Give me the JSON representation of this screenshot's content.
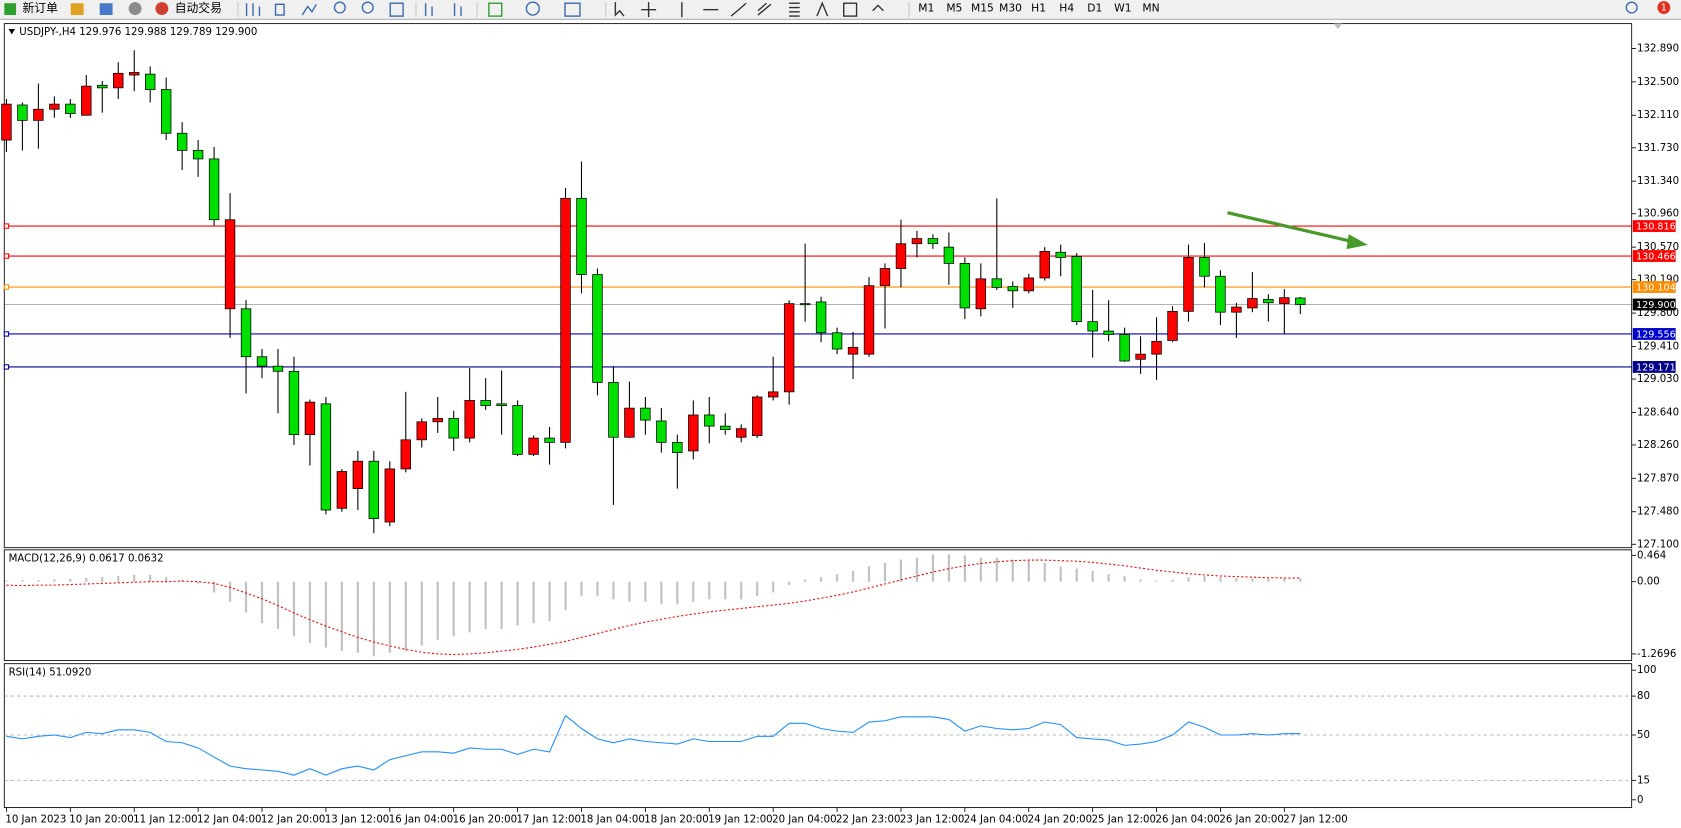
{
  "toolbar": {
    "new_order": "新订单",
    "auto_trading": "自动交易",
    "timeframes": [
      "M1",
      "M5",
      "M15",
      "M30",
      "H1",
      "H4",
      "D1",
      "W1",
      "MN"
    ],
    "badge": "1"
  },
  "chart_data": [
    {
      "type": "candlestick",
      "title": "USDJPY-,H4  129.976 129.988 129.789 129.900",
      "categories": [
        "10 Jan 2023",
        null,
        null,
        null,
        "10 Jan 20:00",
        null,
        null,
        null,
        "11 Jan 12:00",
        null,
        null,
        null,
        "12 Jan 04:00",
        null,
        null,
        null,
        "12 Jan 20:00",
        null,
        null,
        null,
        "13 Jan 12:00",
        null,
        null,
        null,
        "16 Jan 04:00",
        null,
        null,
        null,
        "16 Jan 20:00",
        null,
        null,
        null,
        "17 Jan 12:00",
        null,
        null,
        null,
        "18 Jan 04:00",
        null,
        null,
        null,
        "18 Jan 20:00",
        null,
        null,
        null,
        "19 Jan 12:00",
        null,
        null,
        null,
        "20 Jan 04:00",
        null,
        null,
        null,
        "22 Jan 23:00",
        null,
        null,
        null,
        "23 Jan 12:00",
        null,
        null,
        null,
        "24 Jan 04:00",
        null,
        null,
        null,
        "24 Jan 20:00",
        null,
        null,
        null,
        "25 Jan 12:00",
        null,
        null,
        null,
        "26 Jan 04:00",
        null,
        null,
        null,
        "26 Jan 20:00",
        null,
        null,
        null,
        "27 Jan 12:00",
        null
      ],
      "open": [
        131.82,
        132.23,
        132.05,
        132.18,
        132.24,
        132.11,
        132.46,
        132.43,
        132.58,
        132.59,
        132.41,
        131.9,
        131.7,
        131.6,
        129.85,
        129.85,
        129.29,
        129.18,
        129.12,
        128.38,
        128.74,
        127.52,
        127.75,
        128.07,
        127.36,
        127.98,
        128.32,
        128.53,
        128.57,
        128.34,
        128.78,
        128.74,
        128.72,
        128.15,
        128.34,
        128.29,
        131.14,
        130.25,
        128.99,
        128.35,
        128.69,
        128.54,
        128.29,
        128.19,
        128.61,
        128.48,
        128.35,
        128.37,
        128.82,
        128.88,
        129.91,
        129.93,
        129.57,
        129.32,
        129.32,
        130.12,
        130.32,
        130.61,
        130.67,
        130.57,
        130.38,
        129.85,
        130.2,
        130.11,
        130.06,
        130.21,
        130.51,
        130.46,
        129.7,
        129.59,
        129.55,
        129.26,
        129.32,
        129.48,
        129.82,
        130.45,
        130.23,
        129.81,
        129.86,
        129.96,
        129.91,
        129.976
      ],
      "high": [
        132.3,
        132.26,
        132.48,
        132.33,
        132.3,
        132.58,
        132.51,
        132.73,
        132.87,
        132.68,
        132.55,
        132.03,
        131.82,
        131.74,
        131.2,
        129.95,
        129.38,
        129.38,
        129.29,
        128.79,
        128.82,
        127.98,
        128.19,
        128.19,
        128.07,
        128.88,
        128.57,
        128.82,
        128.66,
        129.16,
        129.04,
        129.13,
        128.78,
        128.37,
        128.47,
        131.26,
        131.57,
        130.32,
        129.18,
        129.0,
        128.82,
        128.69,
        128.38,
        128.78,
        128.82,
        128.63,
        128.5,
        128.84,
        129.29,
        129.95,
        130.61,
        129.99,
        129.63,
        129.58,
        130.22,
        130.38,
        130.89,
        130.76,
        130.72,
        130.74,
        130.45,
        130.38,
        131.14,
        130.17,
        130.26,
        130.57,
        130.6,
        130.5,
        130.07,
        129.95,
        129.63,
        129.53,
        129.75,
        129.88,
        130.6,
        130.62,
        130.3,
        129.92,
        130.28,
        130.02,
        130.08,
        129.988
      ],
      "low": [
        131.68,
        131.7,
        131.72,
        132.08,
        132.08,
        132.11,
        132.14,
        132.3,
        132.39,
        132.26,
        131.82,
        131.47,
        131.39,
        130.82,
        129.51,
        128.86,
        129.04,
        128.63,
        128.26,
        128.02,
        127.45,
        127.48,
        127.5,
        127.23,
        127.31,
        127.94,
        128.23,
        128.4,
        128.19,
        128.29,
        128.67,
        128.38,
        128.13,
        128.13,
        128.03,
        128.22,
        130.03,
        128.84,
        127.56,
        128.34,
        128.38,
        128.17,
        127.75,
        128.09,
        128.28,
        128.38,
        128.29,
        128.34,
        128.78,
        128.73,
        129.7,
        129.46,
        129.32,
        129.03,
        129.29,
        129.62,
        130.1,
        130.45,
        130.55,
        130.13,
        129.73,
        129.76,
        130.07,
        129.86,
        130.03,
        130.18,
        130.23,
        129.66,
        129.28,
        129.47,
        129.23,
        129.09,
        129.02,
        129.46,
        129.7,
        130.1,
        129.66,
        129.51,
        129.81,
        129.7,
        129.56,
        129.789
      ],
      "close": [
        132.24,
        132.05,
        132.18,
        132.24,
        132.13,
        132.45,
        132.43,
        132.6,
        132.61,
        132.41,
        131.9,
        131.7,
        131.6,
        130.89,
        130.89,
        129.29,
        129.18,
        129.12,
        128.38,
        128.76,
        127.5,
        127.95,
        128.07,
        127.4,
        127.98,
        128.32,
        128.53,
        128.57,
        128.34,
        128.78,
        128.72,
        128.72,
        128.15,
        128.34,
        128.29,
        131.14,
        130.25,
        128.99,
        128.35,
        128.69,
        128.55,
        128.29,
        128.17,
        128.61,
        128.48,
        128.44,
        128.45,
        128.82,
        128.88,
        129.91,
        129.9,
        129.57,
        129.38,
        129.4,
        130.12,
        130.32,
        130.61,
        130.67,
        130.61,
        130.38,
        129.86,
        130.2,
        130.1,
        130.06,
        130.21,
        130.52,
        130.45,
        129.7,
        129.59,
        129.55,
        129.24,
        129.32,
        129.47,
        129.82,
        130.45,
        130.23,
        129.81,
        129.87,
        129.97,
        129.92,
        129.98,
        129.9
      ],
      "up_color": "#ff0000",
      "down_color": "#00e000",
      "ylim": [
        127.06,
        133.18
      ],
      "yticks": [
        {
          "value": 132.89,
          "label": "132.890"
        },
        {
          "value": 132.5,
          "label": "132.500"
        },
        {
          "value": 132.11,
          "label": "132.110"
        },
        {
          "value": 131.73,
          "label": "131.730"
        },
        {
          "value": 131.34,
          "label": "131.340"
        },
        {
          "value": 130.96,
          "label": "130.960"
        },
        {
          "value": 130.57,
          "label": "130.570"
        },
        {
          "value": 130.19,
          "label": "130.190"
        },
        {
          "value": 129.8,
          "label": "129.800"
        },
        {
          "value": 129.41,
          "label": "129.410"
        },
        {
          "value": 129.03,
          "label": "129.030"
        },
        {
          "value": 128.64,
          "label": "128.640"
        },
        {
          "value": 128.26,
          "label": "128.260"
        },
        {
          "value": 127.87,
          "label": "127.870"
        },
        {
          "value": 127.48,
          "label": "127.480"
        },
        {
          "value": 127.1,
          "label": "127.100"
        }
      ],
      "levels": [
        {
          "value": 130.816,
          "color": "#ff0000"
        },
        {
          "value": 130.466,
          "color": "#ff0000"
        },
        {
          "value": 130.104,
          "color": "#ff8c00"
        },
        {
          "value": 129.9,
          "label": "129.900",
          "color": "#000000"
        },
        {
          "value": 129.556,
          "color": "#0000cd"
        },
        {
          "value": 129.171,
          "color": "#00008b"
        }
      ]
    },
    {
      "type": "macd",
      "title": "MACD(12,26,9) 0.0617 0.0632",
      "histogram": [
        0.02,
        0.03,
        0.03,
        0.04,
        0.05,
        0.07,
        0.08,
        0.1,
        0.12,
        0.12,
        0.08,
        0.03,
        -0.03,
        -0.19,
        -0.35,
        -0.54,
        -0.73,
        -0.83,
        -0.96,
        -1.08,
        -1.16,
        -1.22,
        -1.25,
        -1.31,
        -1.25,
        -1.22,
        -1.12,
        -1.02,
        -0.96,
        -0.89,
        -0.83,
        -0.83,
        -0.77,
        -0.73,
        -0.69,
        -0.5,
        -0.25,
        -0.25,
        -0.31,
        -0.35,
        -0.35,
        -0.39,
        -0.39,
        -0.35,
        -0.31,
        -0.31,
        -0.31,
        -0.25,
        -0.19,
        -0.06,
        0.04,
        0.08,
        0.13,
        0.19,
        0.27,
        0.33,
        0.39,
        0.42,
        0.48,
        0.48,
        0.46,
        0.42,
        0.42,
        0.39,
        0.39,
        0.33,
        0.27,
        0.23,
        0.19,
        0.13,
        0.1,
        0.04,
        0.02,
        0.03,
        0.08,
        0.1,
        0.08,
        0.06,
        0.06,
        0.05,
        0.06,
        0.0617
      ],
      "signal": [
        -0.06,
        -0.07,
        -0.06,
        -0.06,
        -0.05,
        -0.04,
        -0.03,
        -0.02,
        -0.01,
        0.0,
        0.0,
        0.01,
        0.0,
        -0.03,
        -0.1,
        -0.2,
        -0.3,
        -0.42,
        -0.55,
        -0.67,
        -0.78,
        -0.88,
        -0.98,
        -1.06,
        -1.13,
        -1.19,
        -1.24,
        -1.27,
        -1.28,
        -1.27,
        -1.25,
        -1.22,
        -1.19,
        -1.15,
        -1.1,
        -1.05,
        -0.98,
        -0.91,
        -0.84,
        -0.77,
        -0.71,
        -0.66,
        -0.61,
        -0.57,
        -0.53,
        -0.5,
        -0.47,
        -0.44,
        -0.41,
        -0.38,
        -0.34,
        -0.29,
        -0.24,
        -0.18,
        -0.11,
        -0.04,
        0.03,
        0.1,
        0.17,
        0.23,
        0.28,
        0.32,
        0.35,
        0.37,
        0.38,
        0.38,
        0.37,
        0.36,
        0.34,
        0.31,
        0.28,
        0.24,
        0.2,
        0.17,
        0.14,
        0.12,
        0.1,
        0.09,
        0.08,
        0.07,
        0.065,
        0.0632
      ],
      "histogram_color": "#c0c0c0",
      "signal_color": "#ff0000",
      "ylim": [
        -1.385,
        0.56
      ],
      "yticks": [
        0.464,
        {
          "value": 0,
          "label": "0.00"
        },
        -1.2696
      ]
    },
    {
      "type": "rsi",
      "title": "RSI(14) 51.0920",
      "values": [
        49,
        47,
        49,
        50,
        48,
        52,
        51,
        54,
        54,
        52,
        45,
        44,
        40,
        33,
        26,
        24,
        23,
        22,
        19,
        24,
        19,
        24,
        26,
        23,
        31,
        34,
        37,
        37,
        36,
        40,
        39,
        39,
        35,
        39,
        37,
        65,
        55,
        47,
        44,
        47,
        45,
        44,
        43,
        47,
        45,
        45,
        45,
        49,
        49,
        59,
        59,
        55,
        53,
        52,
        60,
        61,
        64,
        64,
        64,
        62,
        53,
        57,
        55,
        54,
        55,
        60,
        58,
        48,
        47,
        46,
        42,
        43,
        45,
        50,
        60,
        56,
        50,
        50,
        51,
        50,
        51,
        51.092
      ],
      "color": "#1e90ff",
      "ylim": [
        -6,
        105
      ],
      "yticks": [
        100,
        80,
        50,
        15,
        0
      ],
      "levels": [
        80,
        50,
        15
      ]
    }
  ]
}
